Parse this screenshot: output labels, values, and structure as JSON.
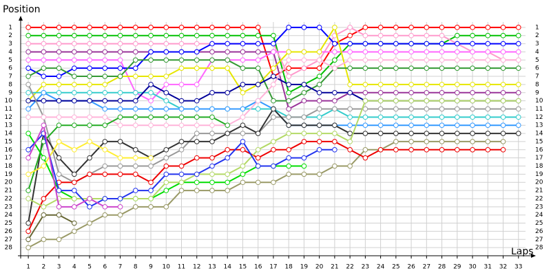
{
  "chart_data": {
    "type": "line",
    "y_label": "Position",
    "x_label": "Laps",
    "x": [
      1,
      2,
      3,
      4,
      5,
      6,
      7,
      8,
      9,
      10,
      11,
      12,
      13,
      14,
      15,
      16,
      17,
      18,
      19,
      20,
      21,
      22,
      23,
      24,
      25,
      26,
      27,
      28,
      29,
      30,
      31,
      32,
      33
    ],
    "xlim": [
      0.5,
      34
    ],
    "xticks": [
      1,
      2,
      3,
      4,
      5,
      6,
      7,
      8,
      9,
      10,
      11,
      12,
      13,
      14,
      15,
      16,
      17,
      18,
      19,
      20,
      21,
      22,
      23,
      24,
      25,
      26,
      27,
      28,
      29,
      30,
      31,
      32,
      33
    ],
    "ylim": [
      29,
      0
    ],
    "yticks": [
      1,
      2,
      3,
      4,
      5,
      6,
      7,
      8,
      9,
      10,
      11,
      12,
      13,
      14,
      15,
      16,
      17,
      18,
      19,
      20,
      21,
      22,
      23,
      24,
      25,
      26,
      27,
      28
    ],
    "grid": true,
    "series": [
      {
        "color": "#ff0000",
        "values": [
          1,
          1,
          1,
          1,
          1,
          1,
          1,
          1,
          1,
          1,
          1,
          1,
          1,
          1,
          1,
          1,
          7,
          6,
          6,
          6,
          3,
          2,
          1,
          1,
          1,
          1,
          1,
          1,
          1,
          1,
          1,
          1,
          1
        ]
      },
      {
        "color": "#00c000",
        "values": [
          2,
          2,
          2,
          2,
          2,
          2,
          2,
          2,
          2,
          2,
          2,
          2,
          2,
          2,
          2,
          2,
          2,
          9,
          8,
          7,
          5,
          3,
          3,
          3,
          3,
          3,
          3,
          3,
          2,
          2,
          2,
          2,
          2
        ]
      },
      {
        "color": "#ff99cc",
        "values": [
          3,
          3,
          3,
          3,
          3,
          3,
          3,
          3,
          3,
          3,
          3,
          3,
          3,
          3,
          3,
          3,
          3,
          7,
          6,
          5,
          2,
          1,
          2,
          2,
          2,
          2,
          2,
          2,
          3,
          4,
          4,
          5,
          5
        ]
      },
      {
        "color": "#993399",
        "values": [
          4,
          4,
          4,
          4,
          4,
          4,
          4,
          4,
          4,
          4,
          4,
          4,
          4,
          4,
          4,
          4,
          4,
          11,
          10,
          10,
          10,
          9,
          9,
          9,
          9,
          9,
          9,
          9,
          9,
          9,
          9,
          9,
          9
        ]
      },
      {
        "color": "#ff66ff",
        "values": [
          5,
          5,
          5,
          5,
          5,
          5,
          5,
          9,
          10,
          8,
          8,
          8,
          5,
          5,
          5,
          5,
          4,
          4,
          4,
          4,
          4,
          4,
          4,
          4,
          4,
          4,
          4,
          4,
          4,
          4,
          4,
          4,
          4
        ]
      },
      {
        "color": "#0000ff",
        "values": [
          6,
          7,
          7,
          6,
          6,
          6,
          6,
          6,
          4,
          4,
          4,
          4,
          3,
          3,
          3,
          3,
          3,
          1,
          1,
          1,
          3,
          3,
          3,
          3,
          3,
          3,
          3,
          3,
          3,
          3,
          3,
          3,
          3
        ]
      },
      {
        "color": "#e6e600",
        "values": [
          10,
          8,
          8,
          8,
          8,
          8,
          7,
          7,
          7,
          7,
          6,
          6,
          6,
          6,
          9,
          8,
          6,
          4,
          4,
          4,
          1,
          8,
          8,
          8,
          8,
          8,
          8,
          8,
          8,
          8,
          8,
          8,
          8
        ]
      },
      {
        "color": "#339933",
        "values": [
          7,
          6,
          6,
          7,
          7,
          7,
          7,
          5,
          5,
          5,
          5,
          5,
          5,
          5,
          6,
          6,
          10,
          10,
          9,
          8,
          6,
          6,
          6,
          6,
          6,
          6,
          6,
          6,
          6,
          6,
          6,
          6,
          6
        ]
      },
      {
        "color": "#33cccc",
        "values": [
          9,
          9,
          9,
          9,
          9,
          9,
          9,
          9,
          9,
          10,
          11,
          11,
          11,
          11,
          11,
          11,
          11,
          12,
          12,
          12,
          11,
          12,
          12,
          12,
          12,
          12,
          12,
          12,
          12,
          12,
          12,
          12,
          12
        ]
      },
      {
        "color": "#3399ff",
        "values": [
          11,
          9,
          10,
          10,
          10,
          11,
          11,
          11,
          11,
          11,
          11,
          11,
          11,
          11,
          11,
          10,
          11,
          13,
          13,
          13,
          13,
          13,
          13,
          13,
          13,
          13,
          13,
          13,
          13,
          13,
          13,
          13,
          13
        ]
      },
      {
        "color": "#000099",
        "values": [
          10,
          10,
          10,
          10,
          10,
          10,
          10,
          10,
          8,
          9,
          10,
          10,
          9,
          9,
          8,
          8,
          7,
          8,
          8,
          9,
          9,
          9,
          10,
          10,
          10,
          10,
          10,
          10,
          10,
          10,
          10,
          10,
          10
        ]
      },
      {
        "color": "#999966",
        "values": [
          28,
          27,
          27,
          26,
          25,
          24,
          24,
          23,
          23,
          23,
          21,
          21,
          21,
          21,
          20,
          20,
          20,
          19,
          19,
          19,
          18,
          18,
          16,
          16,
          15,
          15,
          15,
          15,
          15,
          15,
          15,
          15,
          null
        ]
      },
      {
        "color": "#999999",
        "values": [
          8,
          12,
          19,
          20,
          19,
          18,
          18,
          18,
          18,
          17,
          16,
          14,
          14,
          14,
          14,
          14,
          12,
          12,
          12,
          11,
          11,
          11,
          11,
          11,
          11,
          11,
          11,
          11,
          11,
          11,
          11,
          11,
          11
        ]
      },
      {
        "color": "#ffb3d9",
        "values": [
          12,
          12,
          12,
          12,
          12,
          12,
          13,
          13,
          13,
          13,
          13,
          13,
          13,
          13,
          12,
          10,
          8,
          5,
          5,
          5,
          6,
          5,
          5,
          5,
          5,
          5,
          5,
          5,
          5,
          5,
          5,
          5,
          5
        ]
      },
      {
        "color": "#333333",
        "values": [
          25,
          14,
          17,
          19,
          17,
          15,
          15,
          16,
          17,
          16,
          15,
          15,
          15,
          14,
          13,
          14,
          11,
          13,
          13,
          13,
          13,
          14,
          14,
          14,
          14,
          14,
          14,
          14,
          14,
          14,
          14,
          14,
          14
        ]
      },
      {
        "color": "#ee0000",
        "values": [
          26,
          22,
          20,
          20,
          19,
          19,
          19,
          19,
          20,
          18,
          18,
          17,
          17,
          16,
          16,
          17,
          16,
          16,
          15,
          15,
          15,
          16,
          17,
          16,
          16,
          16,
          16,
          16,
          16,
          16,
          16,
          16,
          null
        ]
      },
      {
        "color": "#22aa22",
        "values": [
          21,
          15,
          13,
          13,
          13,
          13,
          12,
          12,
          12,
          12,
          12,
          12,
          12,
          13,
          null,
          null,
          null,
          null,
          null,
          null,
          null,
          null,
          null,
          null,
          null,
          null,
          null,
          null,
          null,
          null,
          null,
          null,
          null
        ]
      },
      {
        "color": "#00dd00",
        "values": [
          14,
          17,
          21,
          22,
          22,
          22,
          22,
          22,
          22,
          21,
          20,
          20,
          20,
          20,
          19,
          18,
          18,
          18,
          18,
          null,
          null,
          null,
          null,
          null,
          null,
          null,
          null,
          null,
          null,
          null,
          null,
          null,
          null
        ]
      },
      {
        "color": "#b3d966",
        "values": [
          22,
          23,
          22,
          22,
          22,
          22,
          22,
          22,
          22,
          20,
          20,
          19,
          19,
          19,
          18,
          16,
          15,
          14,
          14,
          14,
          14,
          15,
          10,
          10,
          10,
          10,
          10,
          10,
          10,
          10,
          10,
          10,
          10
        ]
      },
      {
        "color": "#ffee33",
        "values": [
          19,
          18,
          15,
          16,
          15,
          16,
          17,
          17,
          17,
          null,
          null,
          null,
          null,
          null,
          null,
          null,
          null,
          null,
          null,
          null,
          null,
          null,
          null,
          null,
          null,
          null,
          null,
          null,
          null,
          null,
          null,
          null,
          null
        ]
      },
      {
        "color": "#2233ee",
        "values": [
          16,
          14,
          21,
          21,
          23,
          22,
          22,
          21,
          21,
          19,
          19,
          19,
          18,
          17,
          15,
          18,
          18,
          17,
          17,
          16,
          16,
          null,
          null,
          null,
          null,
          null,
          null,
          null,
          null,
          null,
          null,
          null,
          null
        ]
      },
      {
        "color": "#cc44cc",
        "values": [
          17,
          13,
          23,
          23,
          22,
          23,
          23,
          null,
          null,
          null,
          null,
          null,
          null,
          null,
          null,
          null,
          null,
          null,
          null,
          null,
          null,
          null,
          null,
          null,
          null,
          null,
          null,
          null,
          null,
          null,
          null,
          null,
          null
        ]
      },
      {
        "color": "#666633",
        "values": [
          27,
          24,
          24,
          25,
          null,
          null,
          null,
          null,
          null,
          null,
          null,
          null,
          null,
          null,
          null,
          null,
          null,
          null,
          null,
          null,
          null,
          null,
          null,
          null,
          null,
          null,
          null,
          null,
          null,
          null,
          null,
          null,
          null
        ]
      }
    ]
  }
}
